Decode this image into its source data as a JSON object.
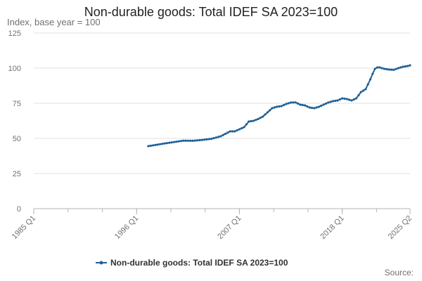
{
  "chart_data": {
    "type": "line",
    "title": "Non-durable goods: Total IDEF SA 2023=100",
    "subtitle": "Index, base year = 100",
    "ylabel": "Index, base year = 100",
    "xlabel": "",
    "ylim": [
      0,
      125
    ],
    "yticks": [
      0,
      25,
      50,
      75,
      100,
      125
    ],
    "x_tick_labels": [
      "1985 Q1",
      "1996 Q1",
      "2007 Q1",
      "2018 Q1",
      "2025 Q2"
    ],
    "x_tick_years": [
      1985.0,
      1996.0,
      2007.0,
      2018.0,
      2025.25
    ],
    "xlim": [
      1985.0,
      2025.25
    ],
    "legend": "bottom-center",
    "grid": true,
    "color": "#206095",
    "series": [
      {
        "name": "Non-durable goods: Total IDEF SA 2023=100",
        "x": [
          1997.25,
          1998.0,
          1999.0,
          2000.0,
          2001.0,
          2002.0,
          2003.0,
          2004.0,
          2005.0,
          2006.0,
          2006.5,
          2007.0,
          2007.5,
          2008.0,
          2008.5,
          2009.0,
          2009.5,
          2010.0,
          2010.5,
          2011.0,
          2011.5,
          2012.0,
          2012.5,
          2013.0,
          2013.5,
          2014.0,
          2014.5,
          2015.0,
          2015.5,
          2016.0,
          2016.5,
          2017.0,
          2017.5,
          2018.0,
          2018.5,
          2019.0,
          2019.5,
          2020.0,
          2020.5,
          2021.0,
          2021.25,
          2021.5,
          2021.75,
          2022.0,
          2022.5,
          2023.0,
          2023.5,
          2024.0,
          2024.5,
          2025.0,
          2025.25
        ],
        "values": [
          44.5,
          45.3,
          46.4,
          47.4,
          48.4,
          48.3,
          48.9,
          49.7,
          51.5,
          55.0,
          55.0,
          56.5,
          58.0,
          62.0,
          62.5,
          63.8,
          65.5,
          68.5,
          71.5,
          72.5,
          73.0,
          74.5,
          75.5,
          75.6,
          74.0,
          73.5,
          72.0,
          71.5,
          72.5,
          74.0,
          75.5,
          76.5,
          77.0,
          78.5,
          78.0,
          77.0,
          78.5,
          83.0,
          85.0,
          92.0,
          96.0,
          99.5,
          100.5,
          100.5,
          99.5,
          99.0,
          98.8,
          100.0,
          101.0,
          101.5,
          102.0
        ]
      }
    ]
  },
  "source_label": "Source:"
}
